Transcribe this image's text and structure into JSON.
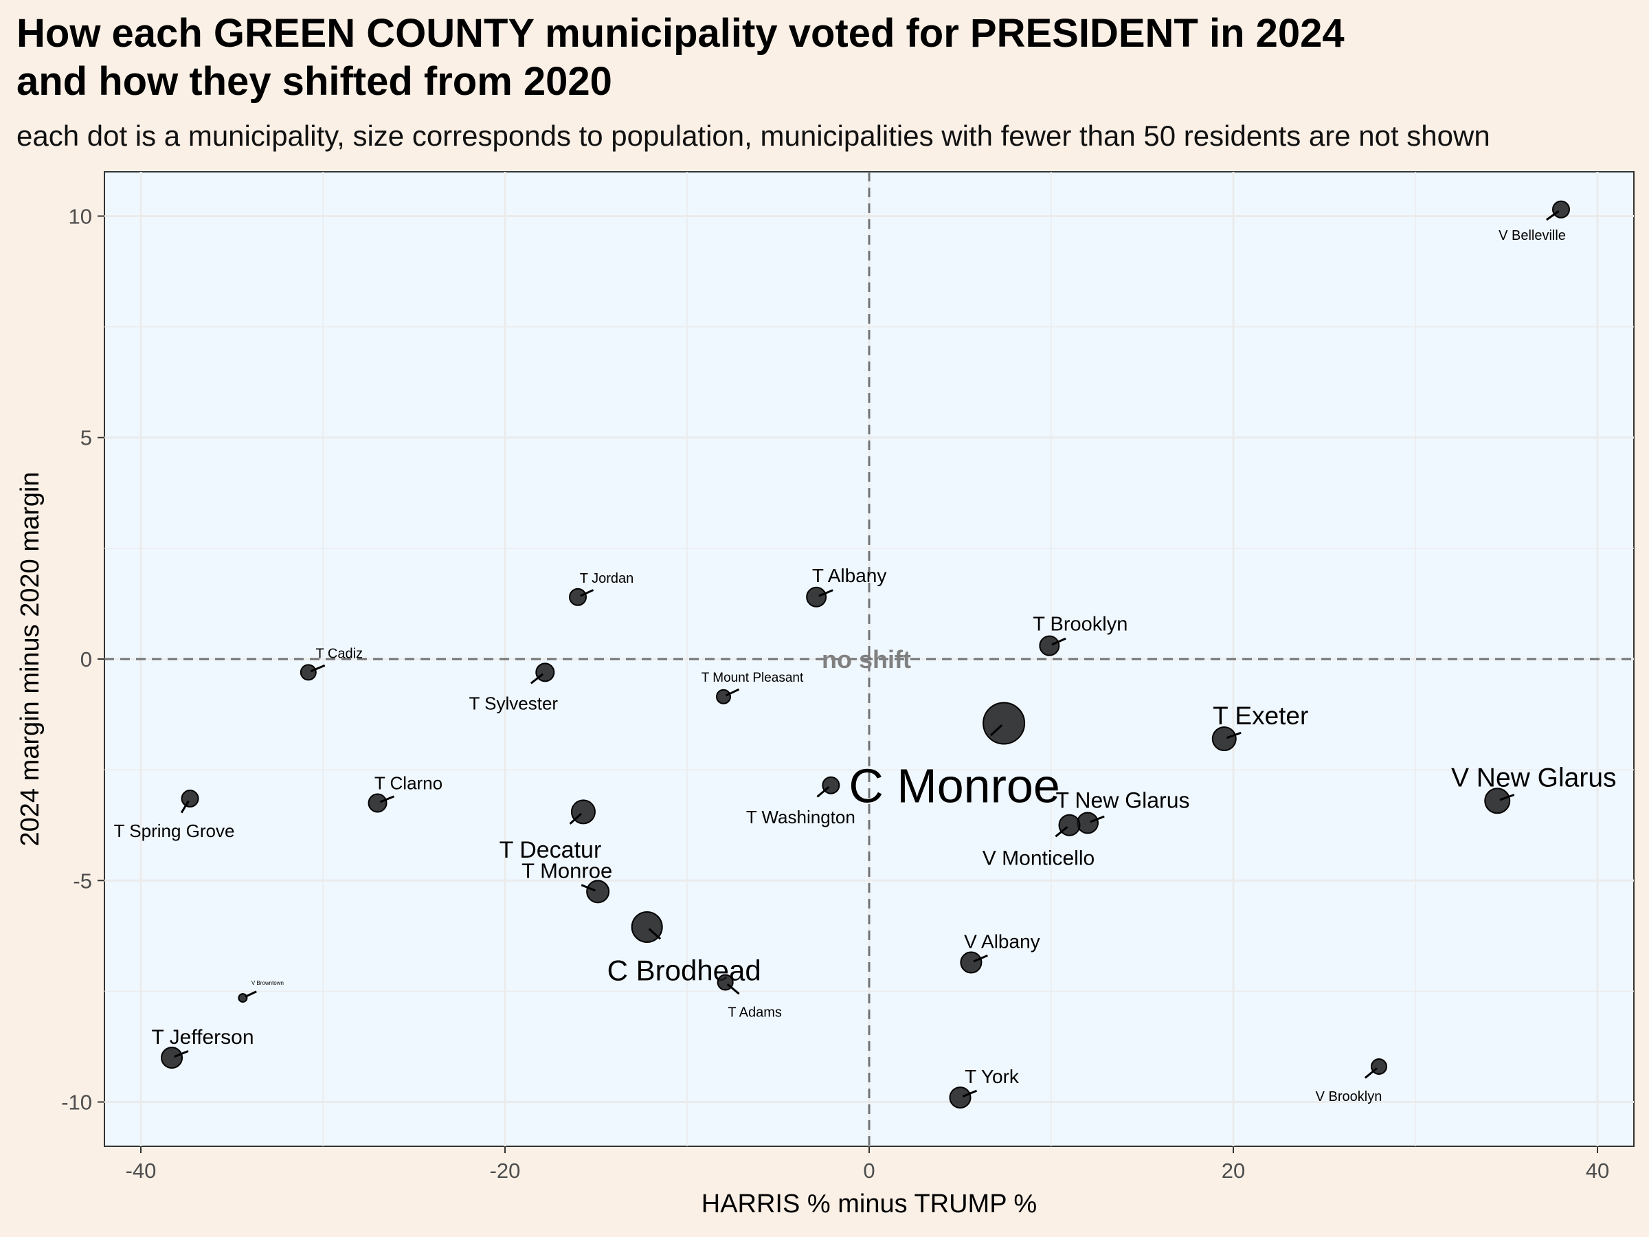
{
  "title": "How each GREEN COUNTY municipality voted for PRESIDENT in 2024\nand how they shifted from 2020",
  "subtitle": "each dot is a municipality, size corresponds to population, municipalities with fewer than 50 residents are not shown",
  "colors": {
    "page_background": "#faf0e6",
    "panel_background": "#f0f8ff",
    "grid": "#ebebeb",
    "point_fill": "#1a1a1a",
    "reference_line": "#737373",
    "reference_label": "#808080"
  },
  "chart_data": {
    "type": "scatter",
    "xlabel": "HARRIS % minus TRUMP %",
    "ylabel": "2024 margin minus 2020 margin",
    "xlim": [
      -42,
      42
    ],
    "ylim": [
      -11,
      11
    ],
    "xticks": [
      -40,
      -20,
      0,
      20,
      40
    ],
    "yticks": [
      -10,
      -5,
      0,
      5,
      10
    ],
    "grid": true,
    "reference_lines": {
      "x": 0,
      "y": 0,
      "style": "dashed",
      "label": "no shift"
    },
    "size_encoding": "population (relative marker size)",
    "points": [
      {
        "name": "V Belleville",
        "x": 38.0,
        "y": 10.15,
        "size": 1.2,
        "label_size": 1.0
      },
      {
        "name": "T Jordan",
        "x": -16.0,
        "y": 1.4,
        "size": 1.2,
        "label_size": 1.0
      },
      {
        "name": "T Albany",
        "x": -2.9,
        "y": 1.4,
        "size": 1.4,
        "label_size": 1.3
      },
      {
        "name": "T Brooklyn",
        "x": 9.9,
        "y": 0.3,
        "size": 1.4,
        "label_size": 1.35
      },
      {
        "name": "T Cadiz",
        "x": -30.8,
        "y": -0.3,
        "size": 1.1,
        "label_size": 1.0
      },
      {
        "name": "T Sylvester",
        "x": -17.8,
        "y": -0.3,
        "size": 1.3,
        "label_size": 1.2
      },
      {
        "name": "T Mount Pleasant",
        "x": -8.0,
        "y": -0.85,
        "size": 1.0,
        "label_size": 0.95
      },
      {
        "name": "C Monroe",
        "x": 7.4,
        "y": -1.45,
        "size": 3.0,
        "label_size": 3.4
      },
      {
        "name": "T Exeter",
        "x": 19.5,
        "y": -1.8,
        "size": 1.7,
        "label_size": 1.75
      },
      {
        "name": "T Spring Grove",
        "x": -37.3,
        "y": -3.15,
        "size": 1.2,
        "label_size": 1.2
      },
      {
        "name": "T Clarno",
        "x": -27.0,
        "y": -3.25,
        "size": 1.3,
        "label_size": 1.2
      },
      {
        "name": "T Washington",
        "x": -2.1,
        "y": -2.85,
        "size": 1.2,
        "label_size": 1.2
      },
      {
        "name": "T Decatur",
        "x": -15.7,
        "y": -3.45,
        "size": 1.7,
        "label_size": 1.6
      },
      {
        "name": "V New Glarus",
        "x": 34.5,
        "y": -3.2,
        "size": 1.8,
        "label_size": 1.85
      },
      {
        "name": "T New Glarus",
        "x": 12.0,
        "y": -3.7,
        "size": 1.5,
        "label_size": 1.5
      },
      {
        "name": "V Monticello",
        "x": 11.0,
        "y": -3.75,
        "size": 1.5,
        "label_size": 1.4
      },
      {
        "name": "T Monroe",
        "x": -14.9,
        "y": -5.25,
        "size": 1.6,
        "label_size": 1.45
      },
      {
        "name": "C Brodhead",
        "x": -12.2,
        "y": -6.05,
        "size": 2.2,
        "label_size": 2.0
      },
      {
        "name": "V Albany",
        "x": 5.6,
        "y": -6.85,
        "size": 1.5,
        "label_size": 1.3
      },
      {
        "name": "T Adams",
        "x": -7.9,
        "y": -7.3,
        "size": 1.1,
        "label_size": 1.0
      },
      {
        "name": "V Browntown",
        "x": -34.4,
        "y": -7.65,
        "size": 0.6,
        "label_size": 0.4
      },
      {
        "name": "T Jefferson",
        "x": -38.3,
        "y": -9.0,
        "size": 1.5,
        "label_size": 1.4
      },
      {
        "name": "T York",
        "x": 5.0,
        "y": -9.9,
        "size": 1.5,
        "label_size": 1.3
      },
      {
        "name": "V Brooklyn",
        "x": 28.0,
        "y": -9.2,
        "size": 1.1,
        "label_size": 1.0
      }
    ]
  }
}
